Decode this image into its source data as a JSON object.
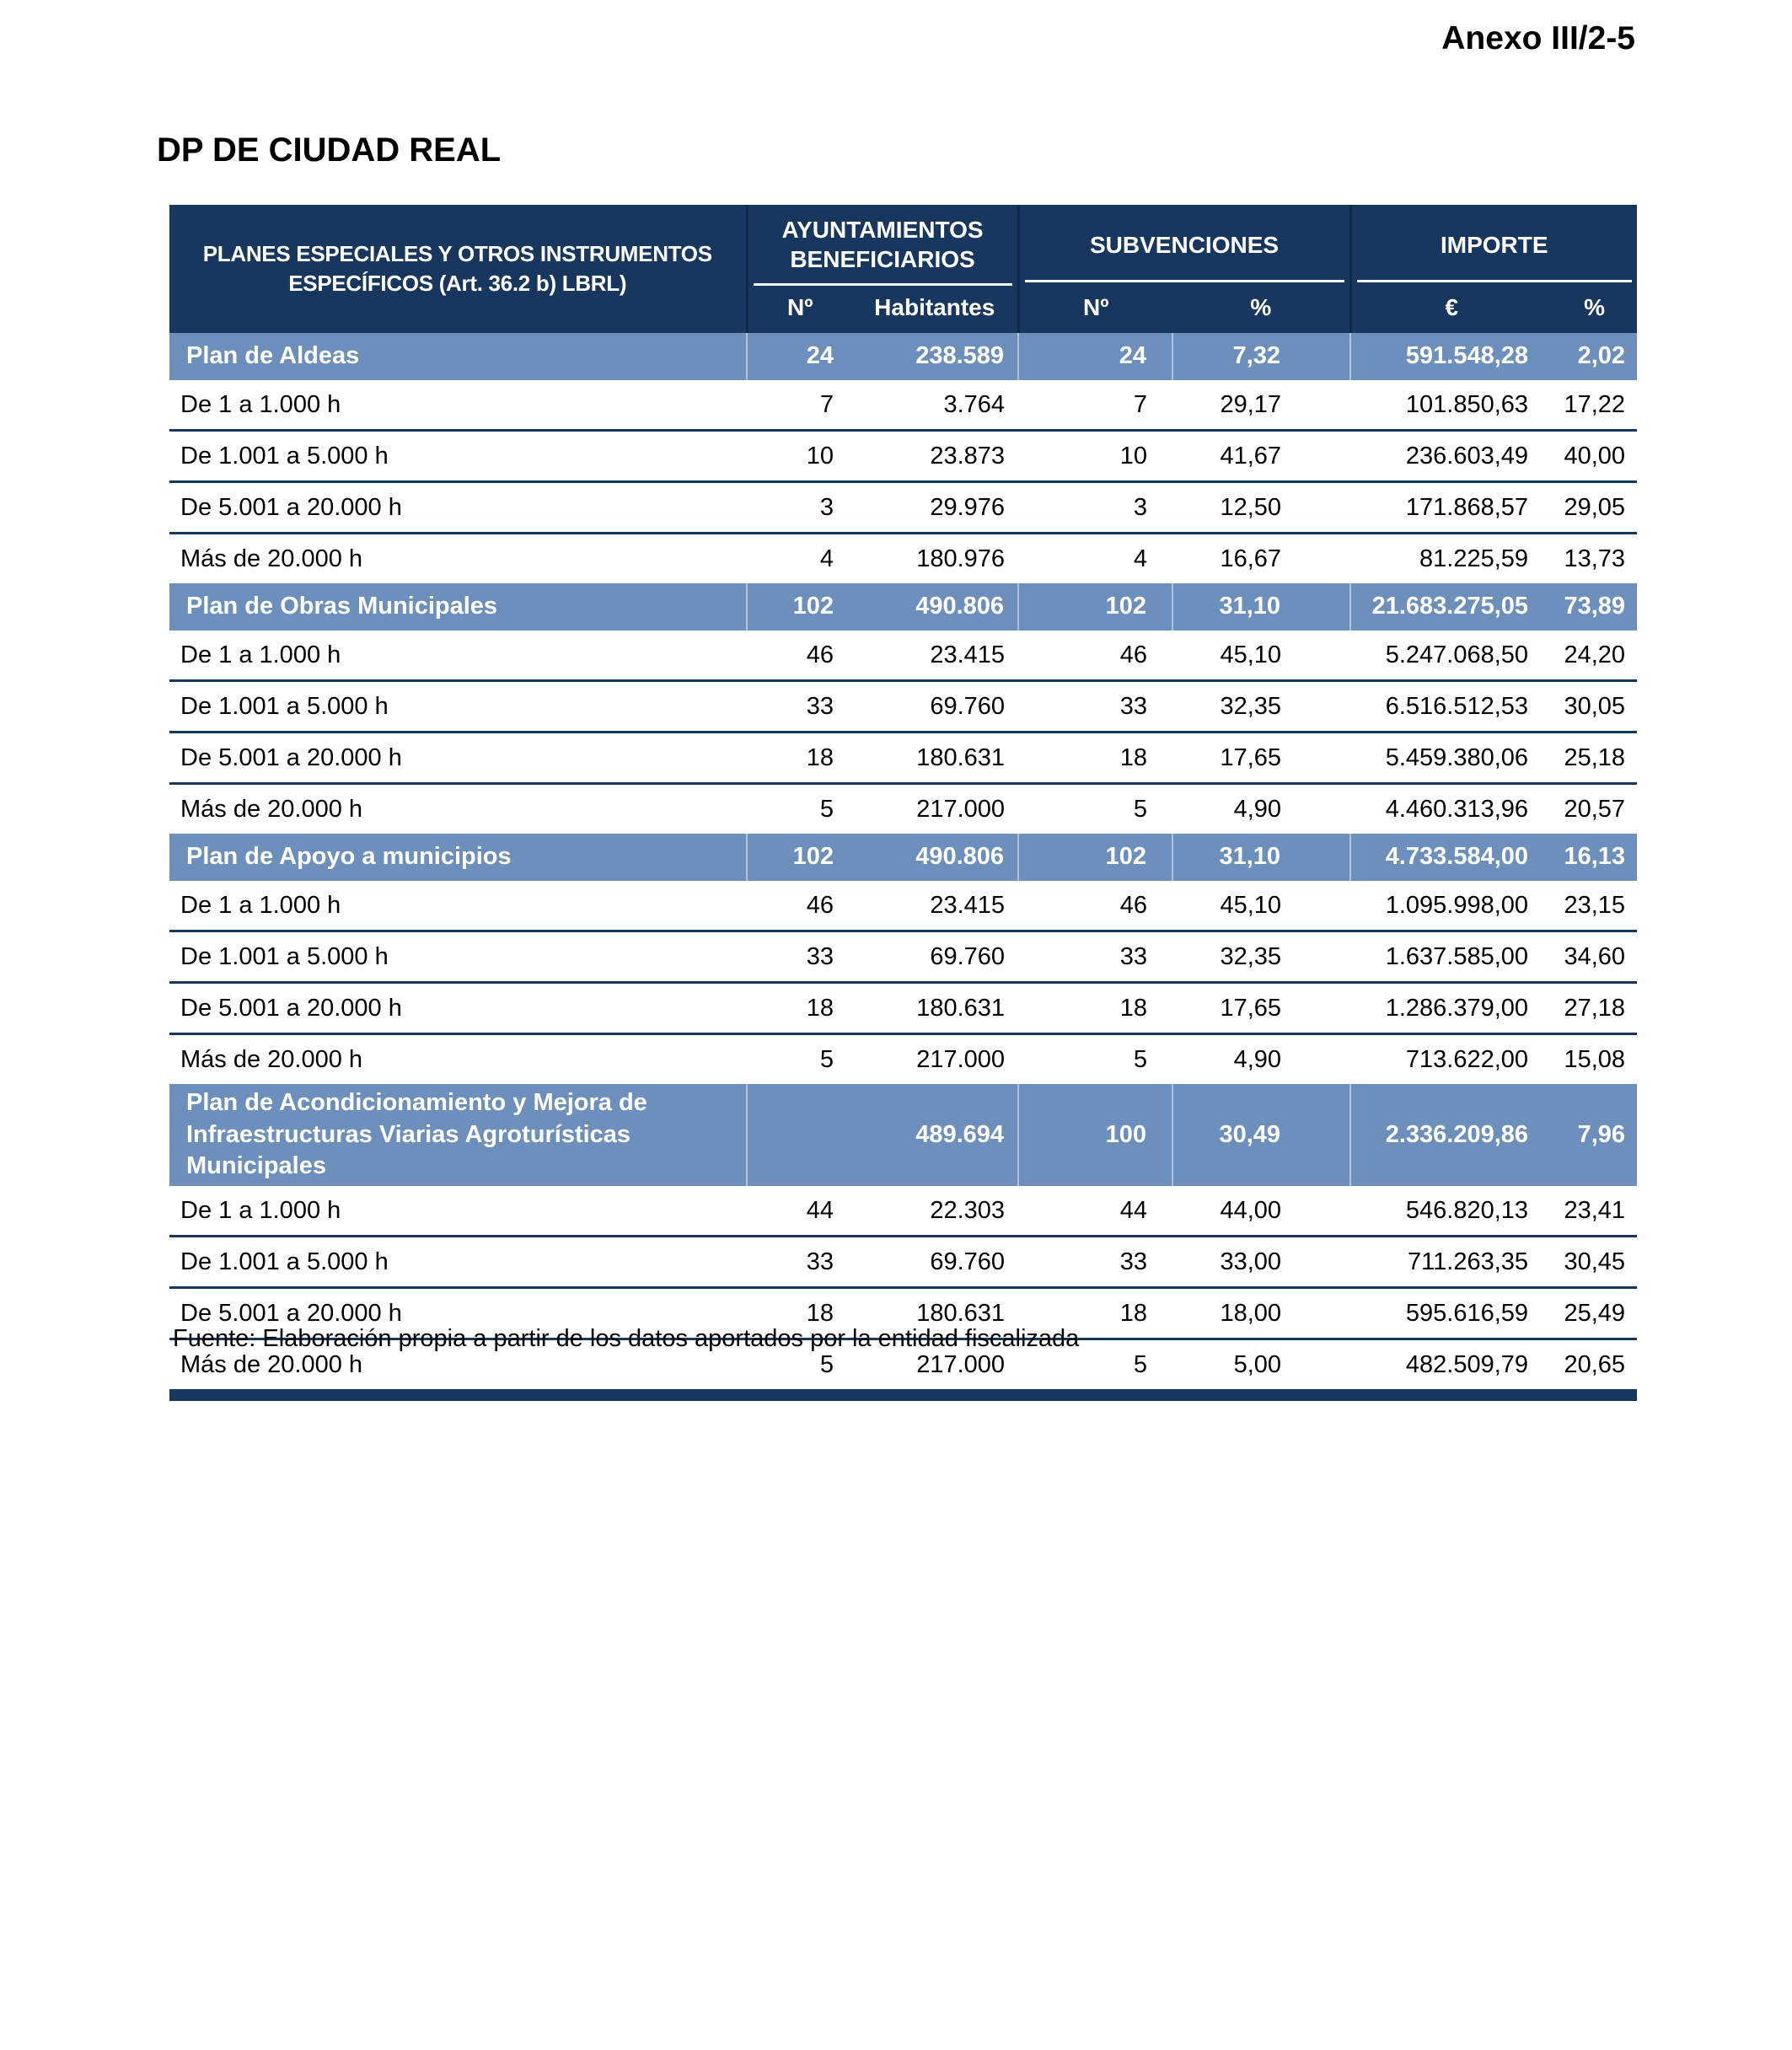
{
  "page": {
    "annex_label": "Anexo III/2-5",
    "title": "DP DE CIUDAD REAL",
    "source_note": "Fuente: Elaboración propia a partir de los datos aportados por la entidad fiscalizada"
  },
  "colors": {
    "header_navy": "#17375E",
    "section_blue": "#6D8FBC",
    "row_separator": "#17375E"
  },
  "table": {
    "col1_header": "PLANES ESPECIALES Y OTROS INSTRUMENTOS ESPECÍFICOS (Art. 36.2 b) LBRL)",
    "groups": [
      {
        "label": "AYUNTAMIENTOS BENEFICIARIOS",
        "cols": [
          "Nº",
          "Habitantes"
        ]
      },
      {
        "label": "SUBVENCIONES",
        "cols": [
          "Nº",
          "%"
        ]
      },
      {
        "label": "IMPORTE",
        "cols": [
          "€",
          "%"
        ]
      }
    ],
    "rows": [
      {
        "type": "section",
        "label": "Plan de Aldeas",
        "values": [
          "24",
          "238.589",
          "24",
          "7,32",
          "591.548,28",
          "2,02"
        ]
      },
      {
        "type": "data",
        "label": "De 1 a 1.000 h",
        "values": [
          "7",
          "3.764",
          "7",
          "29,17",
          "101.850,63",
          "17,22"
        ]
      },
      {
        "type": "data",
        "label": "De 1.001 a 5.000 h",
        "values": [
          "10",
          "23.873",
          "10",
          "41,67",
          "236.603,49",
          "40,00"
        ]
      },
      {
        "type": "data",
        "label": "De 5.001 a 20.000 h",
        "values": [
          "3",
          "29.976",
          "3",
          "12,50",
          "171.868,57",
          "29,05"
        ]
      },
      {
        "type": "data",
        "label": "Más de 20.000 h",
        "values": [
          "4",
          "180.976",
          "4",
          "16,67",
          "81.225,59",
          "13,73"
        ]
      },
      {
        "type": "section",
        "label": "Plan de Obras Municipales",
        "values": [
          "102",
          "490.806",
          "102",
          "31,10",
          "21.683.275,05",
          "73,89"
        ]
      },
      {
        "type": "data",
        "label": "De 1 a 1.000 h",
        "values": [
          "46",
          "23.415",
          "46",
          "45,10",
          "5.247.068,50",
          "24,20"
        ]
      },
      {
        "type": "data",
        "label": "De 1.001 a 5.000 h",
        "values": [
          "33",
          "69.760",
          "33",
          "32,35",
          "6.516.512,53",
          "30,05"
        ]
      },
      {
        "type": "data",
        "label": "De 5.001 a 20.000 h",
        "values": [
          "18",
          "180.631",
          "18",
          "17,65",
          "5.459.380,06",
          "25,18"
        ]
      },
      {
        "type": "data",
        "label": "Más de 20.000 h",
        "values": [
          "5",
          "217.000",
          "5",
          "4,90",
          "4.460.313,96",
          "20,57"
        ]
      },
      {
        "type": "section",
        "label": "Plan de Apoyo a municipios",
        "values": [
          "102",
          "490.806",
          "102",
          "31,10",
          "4.733.584,00",
          "16,13"
        ]
      },
      {
        "type": "data",
        "label": "De 1 a 1.000 h",
        "values": [
          "46",
          "23.415",
          "46",
          "45,10",
          "1.095.998,00",
          "23,15"
        ]
      },
      {
        "type": "data",
        "label": "De 1.001 a 5.000 h",
        "values": [
          "33",
          "69.760",
          "33",
          "32,35",
          "1.637.585,00",
          "34,60"
        ]
      },
      {
        "type": "data",
        "label": "De 5.001 a 20.000 h",
        "values": [
          "18",
          "180.631",
          "18",
          "17,65",
          "1.286.379,00",
          "27,18"
        ]
      },
      {
        "type": "data",
        "label": "Más de 20.000 h",
        "values": [
          "5",
          "217.000",
          "5",
          "4,90",
          "713.622,00",
          "15,08"
        ]
      },
      {
        "type": "section",
        "label": "Plan de Acondicionamiento y Mejora de Infraestructuras Viarias Agroturísticas Municipales",
        "values": [
          "",
          "489.694",
          "100",
          "30,49",
          "2.336.209,86",
          "7,96"
        ]
      },
      {
        "type": "data",
        "label": "De 1 a 1.000 h",
        "values": [
          "44",
          "22.303",
          "44",
          "44,00",
          "546.820,13",
          "23,41"
        ]
      },
      {
        "type": "data",
        "label": "De 1.001 a 5.000 h",
        "values": [
          "33",
          "69.760",
          "33",
          "33,00",
          "711.263,35",
          "30,45"
        ]
      },
      {
        "type": "data",
        "label": "De 5.001 a 20.000 h",
        "values": [
          "18",
          "180.631",
          "18",
          "18,00",
          "595.616,59",
          "25,49"
        ]
      },
      {
        "type": "data",
        "label": "Más de 20.000 h",
        "values": [
          "5",
          "217.000",
          "5",
          "5,00",
          "482.509,79",
          "20,65"
        ]
      }
    ]
  }
}
